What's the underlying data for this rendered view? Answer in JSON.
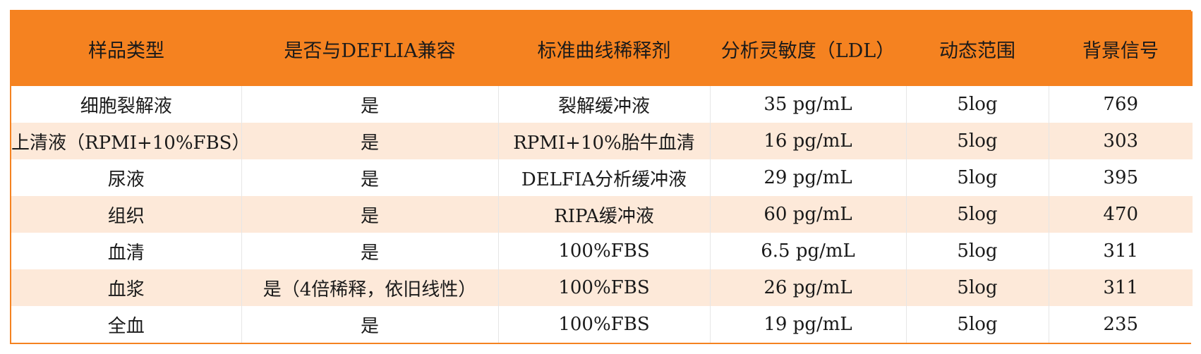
{
  "table": {
    "headers": [
      "样品类型",
      "是否与DEFLIA兼容",
      "标准曲线稀释剂",
      "分析灵敏度（LDL）",
      "动态范围",
      "背景信号"
    ],
    "rows": [
      [
        "细胞裂解液",
        "是",
        "裂解缓冲液",
        "35 pg/mL",
        "5log",
        "769"
      ],
      [
        "上清液（RPMI+10%FBS）",
        "是",
        "RPMI+10%胎牛血清",
        "16 pg/mL",
        "5log",
        "303"
      ],
      [
        "尿液",
        "是",
        "DELFIA分析缓冲液",
        "29 pg/mL",
        "5log",
        "395"
      ],
      [
        "组织",
        "是",
        "RIPA缓冲液",
        "60 pg/mL",
        "5log",
        "470"
      ],
      [
        "血清",
        "是",
        "100%FBS",
        "6.5 pg/mL",
        "5log",
        "311"
      ],
      [
        "血浆",
        "是（4倍稀释，依旧线性）",
        "100%FBS",
        "26 pg/mL",
        "5log",
        "311"
      ],
      [
        "全血",
        "是",
        "100%FBS",
        "19 pg/mL",
        "5log",
        "235"
      ]
    ]
  },
  "colors": {
    "header_bg": "#f58220",
    "row_alt_bg": "#fde9d9",
    "row_bg": "#ffffff",
    "border": "#f58220"
  }
}
